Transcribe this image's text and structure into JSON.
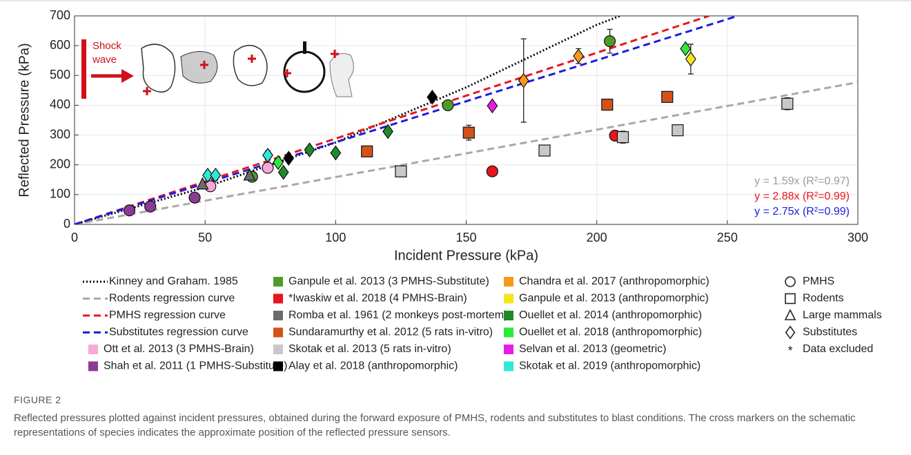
{
  "chart_data": {
    "type": "scatter",
    "xlabel": "Incident Pressure (kPa)",
    "ylabel": "Reflected Pressure (kPa)",
    "xlim": [
      0,
      300
    ],
    "ylim": [
      0,
      700
    ],
    "xticks": [
      0,
      50,
      100,
      150,
      200,
      250,
      300
    ],
    "yticks": [
      0,
      100,
      200,
      300,
      400,
      500,
      600,
      700
    ],
    "grid": true,
    "inset_text": [
      "Shock",
      "wave"
    ],
    "equations": [
      {
        "text": "y = 1.59x (R²=0.97)",
        "color": "#9a9a9a"
      },
      {
        "text": "y = 2.88x (R²=0.99)",
        "color": "#e8141c"
      },
      {
        "text": "y = 2.75x (R²=0.99)",
        "color": "#1c1ce0"
      }
    ],
    "series": [
      {
        "name": "Kinney and Graham. 1985",
        "color": "#000000",
        "line_style": "dotted",
        "x": [
          0,
          50,
          100,
          150,
          200,
          209
        ],
        "values": [
          0,
          125,
          275,
          460,
          670,
          700
        ]
      },
      {
        "name": "Rodents regression curve",
        "color": "#a8a8a8",
        "line_style": "dashed",
        "x": [
          0,
          300
        ],
        "values": [
          0,
          477
        ]
      },
      {
        "name": "PMHS regression curve",
        "color": "#e8141c",
        "line_style": "dashed",
        "x": [
          0,
          243
        ],
        "values": [
          0,
          700
        ]
      },
      {
        "name": "Substitutes regression curve",
        "color": "#1c1ce0",
        "line_style": "dashed",
        "x": [
          0,
          254
        ],
        "values": [
          0,
          700
        ]
      },
      {
        "name": "Ott et al. 2013 (3 PMHS-Brain)",
        "color": "#f7a8d8",
        "marker": "circle",
        "x": [
          52,
          74
        ],
        "values": [
          128,
          190
        ]
      },
      {
        "name": "Shah et al. 2011 (1 PMHS-Substitute)",
        "color": "#8b3a96",
        "marker": "circle",
        "x": [
          21,
          29,
          46
        ],
        "values": [
          47,
          60,
          90
        ]
      },
      {
        "name": "Ganpule et al. 2013 (3 PMHS-Substitute)",
        "color": "#4e9a2a",
        "marker": "circle",
        "x": [
          68,
          143,
          205
        ],
        "values": [
          160,
          400,
          615
        ],
        "errors": [
          null,
          null,
          40
        ]
      },
      {
        "name": "*Iwaskiw et al. 2018 (4 PMHS-Brain)",
        "color": "#e8141c",
        "marker": "circle",
        "x": [
          160,
          207
        ],
        "values": [
          178,
          298
        ]
      },
      {
        "name": "Romba et al. 1961 (2 monkeys post-mortem)",
        "color": "#6b6b6b",
        "marker": "triangle",
        "x": [
          49,
          67
        ],
        "values": [
          135,
          165
        ]
      },
      {
        "name": "Sundaramurthy et al. 2012 (5 rats in-vitro)",
        "color": "#d4521a",
        "marker": "square",
        "x": [
          112,
          151,
          204,
          227
        ],
        "values": [
          245,
          308,
          402,
          428
        ],
        "errors": [
          15,
          25,
          15,
          null
        ]
      },
      {
        "name": "Skotak et al. 2013 (5 rats in-vitro)",
        "color": "#c8c8c8",
        "marker": "square",
        "x": [
          125,
          180,
          210,
          231,
          273
        ],
        "values": [
          178,
          248,
          293,
          316,
          405
        ],
        "errors": [
          18,
          15,
          20,
          15,
          20
        ]
      },
      {
        "name": "Alay et al. 2018 (anthropomorphic)",
        "color": "#000000",
        "marker": "diamond",
        "x": [
          82,
          137
        ],
        "values": [
          222,
          427
        ]
      },
      {
        "name": "Chandra et al. 2017 (anthropomorphic)",
        "color": "#f59a18",
        "marker": "diamond",
        "x": [
          172,
          193
        ],
        "values": [
          483,
          565
        ],
        "errors": [
          140,
          25
        ]
      },
      {
        "name": "Ganpule et al. 2013 (anthropomorphic)",
        "color": "#f5e61a",
        "marker": "diamond",
        "x": [
          236
        ],
        "values": [
          555
        ],
        "errors": [
          50
        ]
      },
      {
        "name": "Ouellet et al. 2014 (anthropomorphic)",
        "color": "#1f8a2a",
        "marker": "diamond",
        "x": [
          80,
          90,
          100,
          120
        ],
        "values": [
          175,
          250,
          240,
          312
        ]
      },
      {
        "name": "Ouellet et al. 2018 (anthropomorphic)",
        "color": "#2ee83a",
        "marker": "diamond",
        "x": [
          78,
          234
        ],
        "values": [
          208,
          590
        ]
      },
      {
        "name": "Selvan et al. 2013 (geometric)",
        "color": "#e81ce8",
        "marker": "diamond",
        "x": [
          160
        ],
        "values": [
          398
        ]
      },
      {
        "name": "Skotak et al. 2019 (anthropomorphic)",
        "color": "#2ee8d8",
        "marker": "diamond",
        "x": [
          51,
          54,
          74
        ],
        "values": [
          165,
          165,
          232
        ],
        "errors": [
          12,
          null,
          15
        ]
      }
    ],
    "shape_legend": [
      {
        "shape": "circle",
        "label": "PMHS"
      },
      {
        "shape": "square",
        "label": "Rodents"
      },
      {
        "shape": "triangle",
        "label": "Large mammals"
      },
      {
        "shape": "diamond",
        "label": "Substitutes"
      },
      {
        "shape": "text",
        "symbol": "*",
        "label": "Data excluded"
      }
    ]
  },
  "figure": {
    "label": "FIGURE 2",
    "caption": "Reflected pressures plotted against incident pressures, obtained during the forward exposure of PMHS, rodents and substitutes to blast conditions. The cross markers on the schematic representations of species indicates the approximate position of the reflected pressure sensors."
  }
}
